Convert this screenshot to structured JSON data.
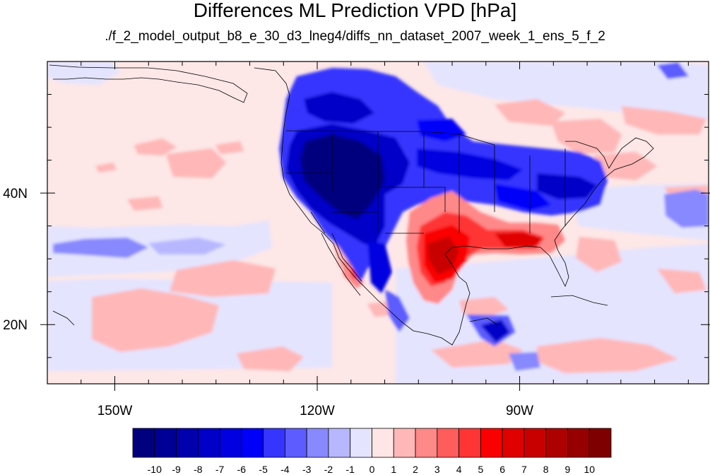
{
  "title": "Differences ML Prediction VPD [hPa]",
  "subtitle": "./f_2_model_output_b8_e_30_d3_lneg4/diffs_nn_dataset_2007_week_1_ens_5_f_2",
  "map": {
    "lon_range": [
      -160,
      -62
    ],
    "lat_range": [
      11,
      60
    ],
    "lon_ticks": [
      {
        "value": -150,
        "label": "150W"
      },
      {
        "value": -120,
        "label": "120W"
      },
      {
        "value": -90,
        "label": "90W"
      }
    ],
    "lat_ticks": [
      {
        "value": 40,
        "label": "40N"
      },
      {
        "value": 20,
        "label": "20N"
      }
    ],
    "background_color": "#fde7e7"
  },
  "colorbar": {
    "labels": [
      "-10",
      "-9",
      "-8",
      "-7",
      "-6",
      "-5",
      "-4",
      "-3",
      "-2",
      "-1",
      "0",
      "1",
      "2",
      "3",
      "4",
      "5",
      "6",
      "7",
      "8",
      "9",
      "10"
    ],
    "colors": [
      "#00007f",
      "#000096",
      "#0000ad",
      "#0000c8",
      "#0000e0",
      "#0000fa",
      "#3535ff",
      "#5c5cff",
      "#8888ff",
      "#b7b7ff",
      "#e4e4ff",
      "#ffe6e6",
      "#ffb7b7",
      "#ff8888",
      "#ff5c5c",
      "#ff3535",
      "#fa0000",
      "#e00000",
      "#c80000",
      "#ad0000",
      "#960000",
      "#7f0000"
    ]
  }
}
